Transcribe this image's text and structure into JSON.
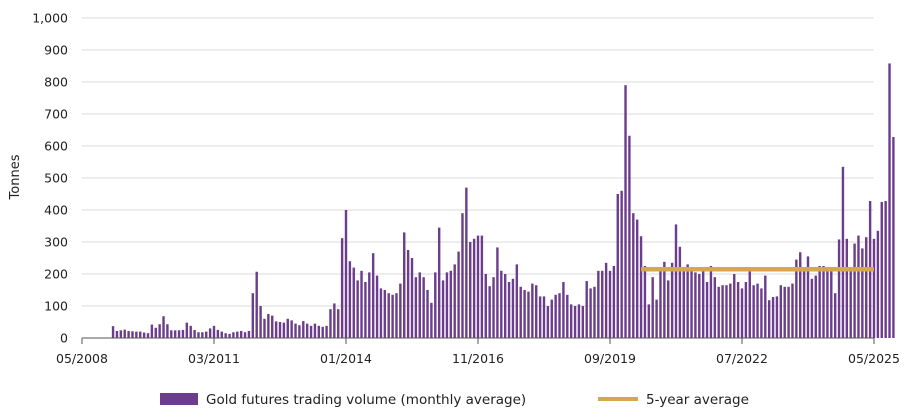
{
  "chart_data": {
    "type": "bar",
    "ylabel": "Tonnes",
    "ylim": [
      0,
      1000
    ],
    "yticks": [
      "0",
      "100",
      "200",
      "300",
      "400",
      "500",
      "600",
      "700",
      "800",
      "900",
      "1,000"
    ],
    "xticks": [
      "05/2008",
      "03/2011",
      "01/2014",
      "11/2016",
      "09/2019",
      "07/2022",
      "05/2025"
    ],
    "grid": "horizontal",
    "legend_position": "bottom",
    "colors": {
      "bars": "#6b3d8c",
      "average": "#d4a84b",
      "grid": "#d9d9d9",
      "axis": "#555555"
    },
    "series": [
      {
        "name": "Gold futures trading volume (monthly average)",
        "type": "bar",
        "start": "2009-01",
        "end": "2025-05",
        "values": [
          37,
          22,
          24,
          26,
          22,
          21,
          20,
          20,
          17,
          15,
          42,
          32,
          43,
          68,
          43,
          24,
          24,
          24,
          25,
          48,
          38,
          25,
          18,
          18,
          20,
          30,
          38,
          25,
          20,
          15,
          13,
          18,
          20,
          22,
          18,
          22,
          140,
          207,
          100,
          60,
          75,
          70,
          52,
          50,
          48,
          60,
          55,
          45,
          40,
          53,
          45,
          38,
          45,
          38,
          35,
          38,
          90,
          108,
          90,
          312,
          400,
          240,
          220,
          180,
          210,
          175,
          205,
          265,
          195,
          155,
          150,
          140,
          135,
          140,
          170,
          330,
          275,
          250,
          190,
          205,
          190,
          150,
          110,
          205,
          345,
          180,
          205,
          210,
          230,
          270,
          390,
          470,
          300,
          310,
          320,
          320,
          200,
          162,
          190,
          283,
          210,
          200,
          175,
          185,
          230,
          160,
          150,
          145,
          170,
          165,
          130,
          130,
          100,
          120,
          135,
          140,
          175,
          135,
          105,
          100,
          105,
          100,
          178,
          155,
          160,
          210,
          210,
          235,
          210,
          225,
          450,
          460,
          790,
          632,
          390,
          370,
          318,
          225,
          105,
          190,
          120,
          210,
          238,
          180,
          235,
          355,
          285,
          218,
          230,
          210,
          205,
          200,
          215,
          175,
          225,
          190,
          160,
          165,
          165,
          170,
          200,
          175,
          155,
          175,
          210,
          165,
          170,
          155,
          195,
          118,
          128,
          130,
          165,
          160,
          160,
          170,
          245,
          268,
          210,
          255,
          185,
          195,
          225,
          225,
          220,
          210,
          140,
          308,
          535,
          310,
          220,
          295,
          320,
          280,
          315,
          428,
          310,
          335,
          425,
          428,
          858,
          628
        ]
      },
      {
        "name": "5-year average",
        "type": "line",
        "x": [
          "2020-05",
          "2025-05"
        ],
        "values": [
          215,
          215
        ]
      }
    ]
  }
}
